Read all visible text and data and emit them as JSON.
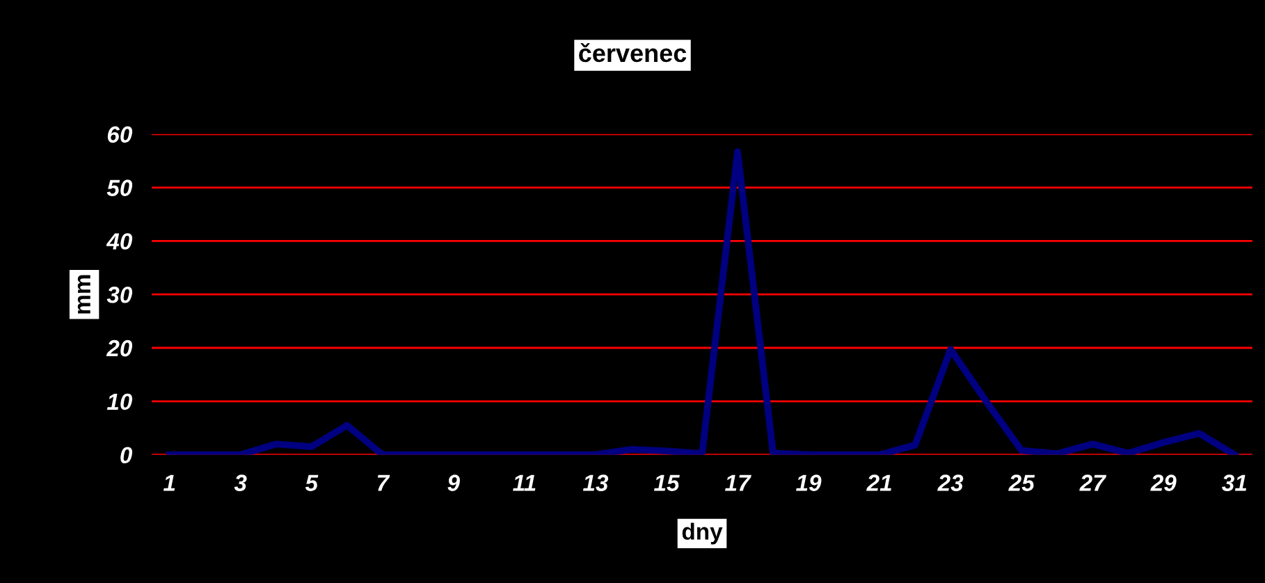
{
  "chart_data": {
    "type": "line",
    "title": "červenec",
    "xlabel": "dny",
    "ylabel": "mm",
    "categories": [
      "1",
      null,
      "3",
      null,
      "5",
      null,
      "7",
      null,
      "9",
      null,
      "11",
      null,
      "13",
      null,
      "15",
      null,
      "17",
      null,
      "19",
      null,
      "21",
      null,
      "23",
      null,
      "25",
      null,
      "27",
      null,
      "29",
      null,
      "31"
    ],
    "series": [
      {
        "color": "#000080",
        "values": [
          0,
          0,
          0,
          2,
          1.5,
          5.5,
          0,
          0,
          0,
          0,
          0,
          0,
          0,
          1,
          0.7,
          0.2,
          56.7,
          0.3,
          0,
          0,
          0,
          1.8,
          19.7,
          10,
          0.8,
          0.2,
          2,
          0.3,
          2.3,
          4,
          0
        ]
      }
    ],
    "ylim": [
      0,
      60
    ],
    "yticks": [
      0,
      10,
      20,
      30,
      40,
      50,
      60
    ],
    "grid": "y",
    "legend": false,
    "marker": "none",
    "line_style": "solid"
  }
}
